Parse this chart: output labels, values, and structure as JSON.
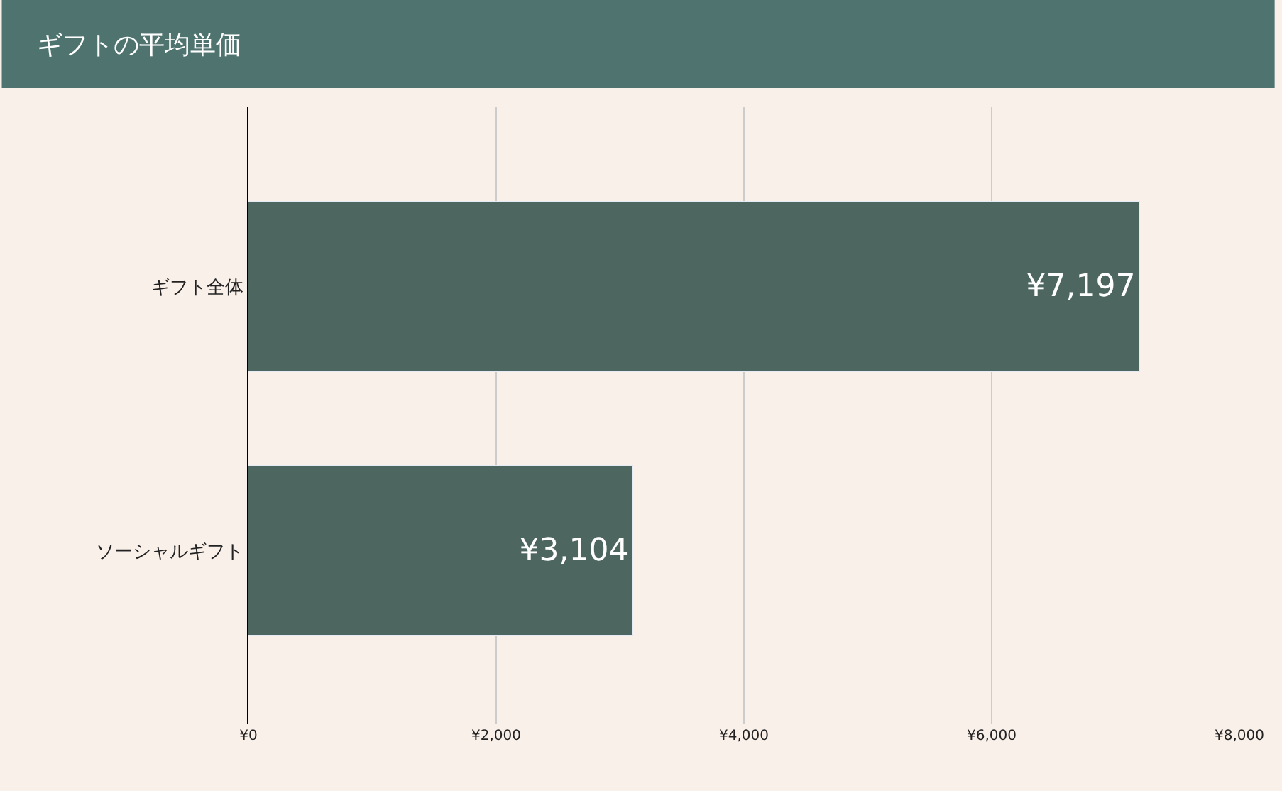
{
  "chart_data": {
    "type": "bar",
    "orientation": "horizontal",
    "title": "ギフトの平均単価",
    "categories": [
      "ギフト全体",
      "ソーシャルギフト"
    ],
    "values": [
      7197,
      3104
    ],
    "color": "#4d6660",
    "value_labels": [
      "¥7,197",
      "¥3,104"
    ],
    "xlim": [
      0,
      8000
    ],
    "xticks": [
      {
        "value": 0,
        "label": "¥0"
      },
      {
        "value": 2000,
        "label": "¥2,000"
      },
      {
        "value": 4000,
        "label": "¥4,000"
      },
      {
        "value": 6000,
        "label": "¥6,000"
      },
      {
        "value": 8000,
        "label": "¥8,000"
      }
    ],
    "grid": "x"
  }
}
